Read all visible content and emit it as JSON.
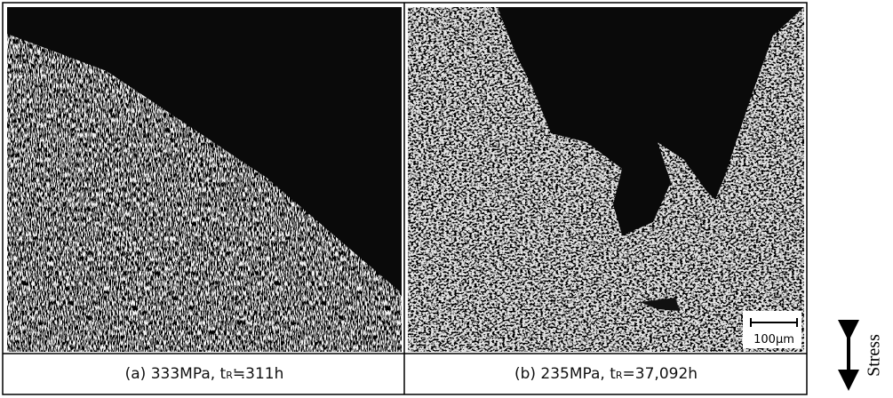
{
  "panels": [
    {
      "caption": "(a) 333MPa, t",
      "subscript": "R",
      "caption_rest": "≒311h"
    },
    {
      "caption": "(b) 235MPa, t",
      "subscript": "R",
      "caption_rest": "=37,092h"
    }
  ],
  "scale_bar": "100μm",
  "stress_label": "Stress"
}
